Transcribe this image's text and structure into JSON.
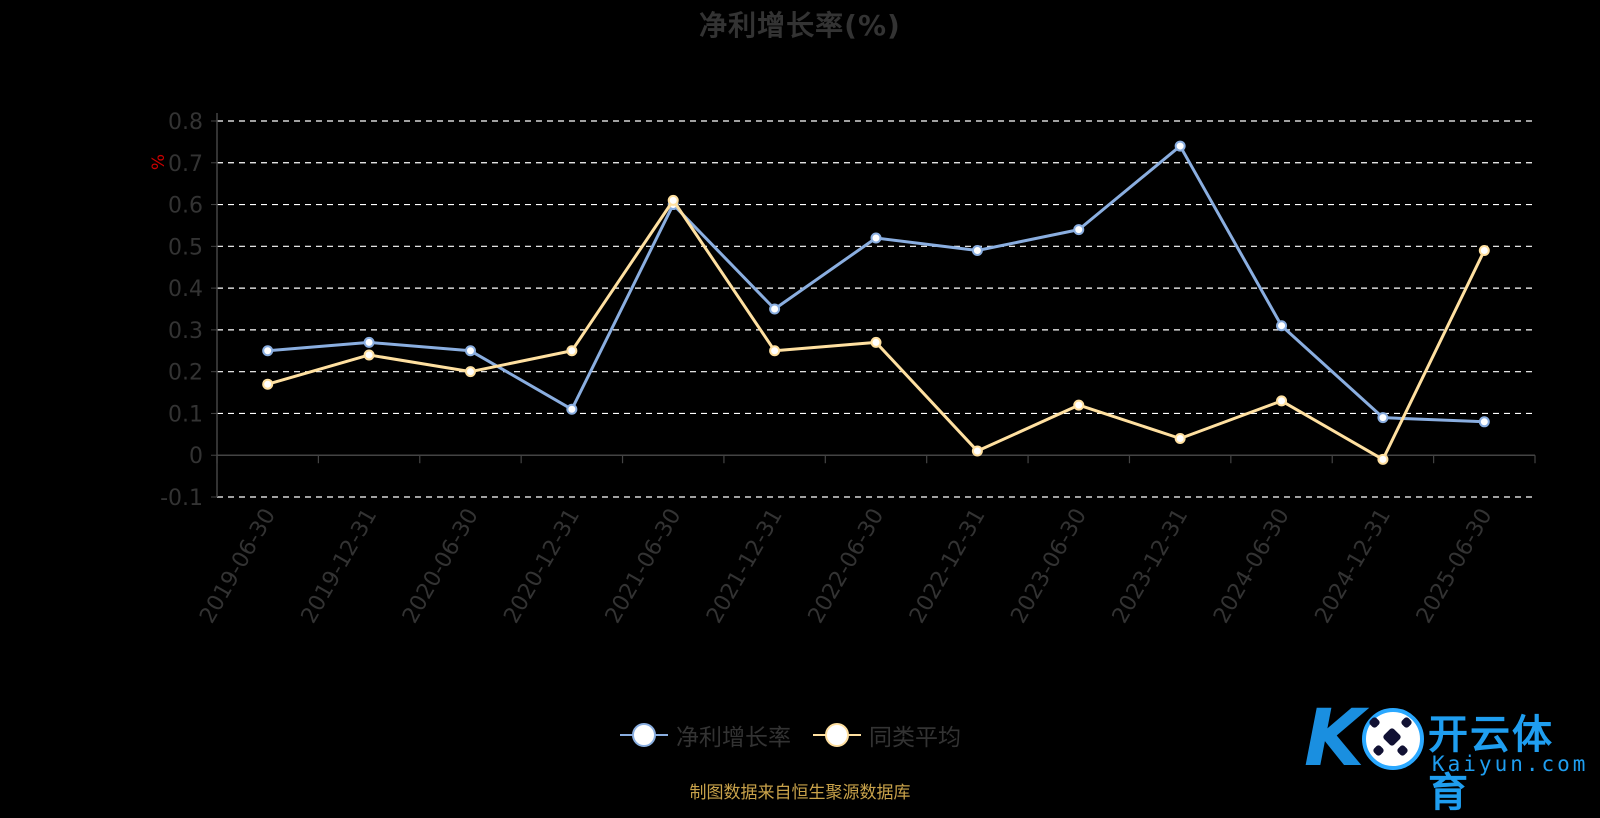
{
  "chart_data": {
    "type": "line",
    "title": "净利增长率(%)",
    "ylabel": "%",
    "xlabel": "",
    "categories": [
      "2019-06-30",
      "2019-12-31",
      "2020-06-30",
      "2020-12-31",
      "2021-06-30",
      "2021-12-31",
      "2022-06-30",
      "2022-12-31",
      "2023-06-30",
      "2023-12-31",
      "2024-06-30",
      "2024-12-31",
      "2025-06-30"
    ],
    "ylim": [
      -0.1,
      0.8
    ],
    "yticks": [
      "0.8",
      "0.7",
      "0.6",
      "0.5",
      "0.4",
      "0.3",
      "0.2",
      "0.1",
      "0",
      "-0.1"
    ],
    "grid": true,
    "legend_position": "bottom-center",
    "series": [
      {
        "name": "净利增长率",
        "color": "#8aaee0",
        "values": [
          0.25,
          0.27,
          0.25,
          0.11,
          0.6,
          0.35,
          0.52,
          0.49,
          0.54,
          0.74,
          0.31,
          0.09,
          0.08
        ]
      },
      {
        "name": "同类平均",
        "color": "#ffe0a0",
        "values": [
          0.17,
          0.24,
          0.2,
          0.25,
          0.61,
          0.25,
          0.27,
          0.01,
          0.12,
          0.04,
          0.13,
          -0.01,
          0.49
        ]
      }
    ]
  },
  "source_note": "制图数据来自恒生聚源数据库",
  "watermark": {
    "cn": "开云体育",
    "en": "Kaiyun.com",
    "mark": "K"
  },
  "colors": {
    "background": "#000000",
    "axis": "#444444",
    "grid": "#ffffff",
    "tick_text": "#333333",
    "unit_text": "#cc0000"
  }
}
